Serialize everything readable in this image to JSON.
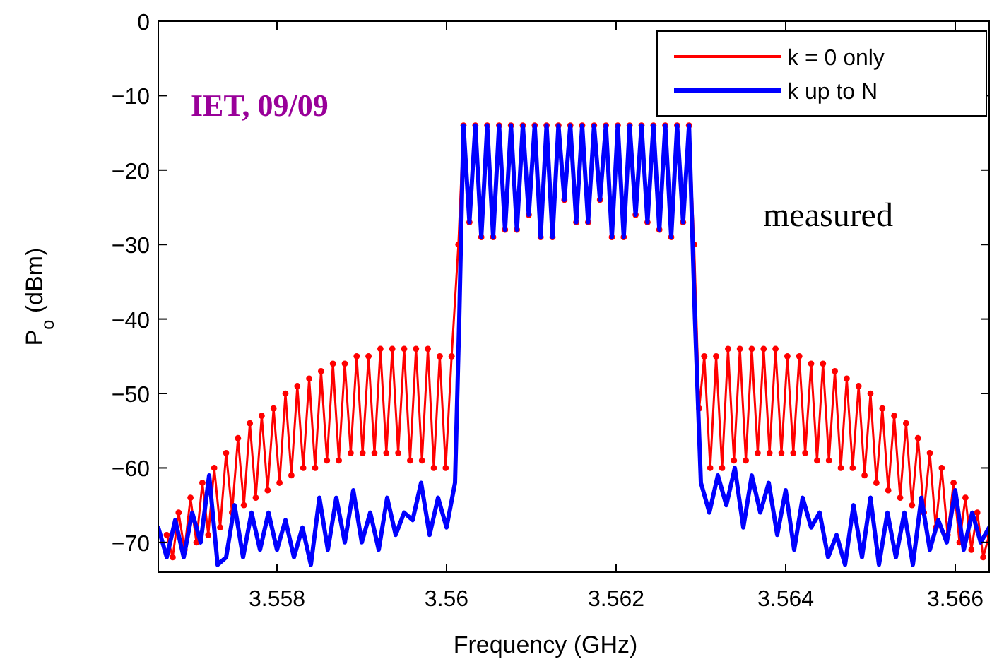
{
  "chart_data": {
    "type": "line",
    "xlabel": "Frequency  (GHz)",
    "ylabel": "P$_{o}$ (dBm)",
    "annotations": [
      "IET, 09/09",
      "measured"
    ],
    "xlim": [
      3.5566,
      3.5664
    ],
    "xticks": [
      3.558,
      3.56,
      3.562,
      3.564,
      3.566
    ],
    "ylim": [
      -74,
      0
    ],
    "yticks": [
      0,
      -10,
      -20,
      -30,
      -40,
      -50,
      -60,
      -70
    ],
    "legend": "top right",
    "line_style": "solid",
    "series": [
      {
        "name": "k = 0 only",
        "color": "#ff0000",
        "marker": "circle",
        "x": [
          3.5567,
          3.55677,
          3.55684,
          3.55691,
          3.55698,
          3.55705,
          3.55712,
          3.55719,
          3.55726,
          3.55733,
          3.5574,
          3.55747,
          3.55754,
          3.55761,
          3.55768,
          3.55775,
          3.55782,
          3.55789,
          3.55796,
          3.55803,
          3.5581,
          3.55817,
          3.55824,
          3.55831,
          3.55838,
          3.55845,
          3.55852,
          3.55859,
          3.55866,
          3.55873,
          3.5588,
          3.55887,
          3.55894,
          3.55901,
          3.55908,
          3.55915,
          3.55922,
          3.55929,
          3.55936,
          3.55943,
          3.5595,
          3.55957,
          3.55964,
          3.55971,
          3.55978,
          3.55985,
          3.55992,
          3.55999,
          3.56006,
          3.56014,
          3.5602,
          3.56027,
          3.56034,
          3.56041,
          3.56048,
          3.56055,
          3.56062,
          3.56069,
          3.56076,
          3.56083,
          3.5609,
          3.56097,
          3.56104,
          3.56111,
          3.56118,
          3.56125,
          3.56132,
          3.56139,
          3.56146,
          3.56153,
          3.5616,
          3.56167,
          3.56174,
          3.56181,
          3.56188,
          3.56195,
          3.56202,
          3.56209,
          3.56216,
          3.56223,
          3.5623,
          3.56237,
          3.56244,
          3.56251,
          3.56258,
          3.56265,
          3.56272,
          3.56279,
          3.56286,
          3.56292,
          3.56298,
          3.56304,
          3.56311,
          3.56318,
          3.56325,
          3.56332,
          3.56339,
          3.56346,
          3.56353,
          3.5636,
          3.56367,
          3.56374,
          3.56381,
          3.56388,
          3.56395,
          3.56402,
          3.56409,
          3.56416,
          3.56423,
          3.5643,
          3.56437,
          3.56444,
          3.56451,
          3.56458,
          3.56465,
          3.56472,
          3.56479,
          3.56486,
          3.56493,
          3.565,
          3.56507,
          3.56514,
          3.56521,
          3.56528,
          3.56535,
          3.56542,
          3.56549,
          3.56556,
          3.56563,
          3.5657,
          3.56577,
          3.56584,
          3.56591,
          3.56598,
          3.56605,
          3.56612,
          3.56619,
          3.56626,
          3.56633,
          3.5664
        ],
        "values": [
          -69,
          -72,
          -66,
          -71,
          -64,
          -70,
          -62,
          -69,
          -60,
          -68,
          -58,
          -66,
          -56,
          -65,
          -54,
          -64,
          -53,
          -63,
          -52,
          -62,
          -50,
          -61,
          -49,
          -60,
          -48,
          -60,
          -47,
          -59,
          -46,
          -59,
          -46,
          -58,
          -45,
          -58,
          -45,
          -58,
          -44,
          -58,
          -44,
          -58,
          -44,
          -59,
          -44,
          -59,
          -44,
          -60,
          -45,
          -60,
          -45,
          -30,
          -14,
          -27,
          -14,
          -29,
          -14,
          -29,
          -14,
          -28,
          -14,
          -28,
          -14,
          -26,
          -14,
          -29,
          -14,
          -29,
          -14,
          -24,
          -14,
          -27,
          -14,
          -27,
          -14,
          -24,
          -14,
          -29,
          -14,
          -29,
          -14,
          -26,
          -14,
          -27,
          -14,
          -28,
          -14,
          -29,
          -14,
          -27,
          -14,
          -30,
          -52,
          -45,
          -60,
          -45,
          -60,
          -44,
          -59,
          -44,
          -59,
          -44,
          -58,
          -44,
          -58,
          -44,
          -58,
          -45,
          -58,
          -45,
          -58,
          -46,
          -59,
          -46,
          -59,
          -47,
          -60,
          -48,
          -60,
          -49,
          -61,
          -50,
          -62,
          -52,
          -63,
          -53,
          -64,
          -54,
          -65,
          -56,
          -66,
          -58,
          -68,
          -60,
          -69,
          -62,
          -70,
          -64,
          -71,
          -66,
          -72,
          -69
        ]
      },
      {
        "name": "k up to N",
        "color": "#0000ff",
        "marker": "none",
        "x": [
          3.5566,
          3.5567,
          3.5568,
          3.5569,
          3.557,
          3.5571,
          3.5572,
          3.5573,
          3.5574,
          3.5575,
          3.5576,
          3.5577,
          3.5578,
          3.5579,
          3.558,
          3.5581,
          3.5582,
          3.5583,
          3.5584,
          3.5585,
          3.5586,
          3.5587,
          3.5588,
          3.5589,
          3.559,
          3.5591,
          3.5592,
          3.5593,
          3.5594,
          3.5595,
          3.5596,
          3.5597,
          3.5598,
          3.5599,
          3.56,
          3.5601,
          3.56015,
          3.5602,
          3.56027,
          3.56034,
          3.56041,
          3.56048,
          3.56055,
          3.56062,
          3.56069,
          3.56076,
          3.56083,
          3.5609,
          3.56097,
          3.56104,
          3.56111,
          3.56118,
          3.56125,
          3.56132,
          3.56139,
          3.56146,
          3.56153,
          3.5616,
          3.56167,
          3.56174,
          3.56181,
          3.56188,
          3.56195,
          3.56202,
          3.56209,
          3.56216,
          3.56223,
          3.5623,
          3.56237,
          3.56244,
          3.56251,
          3.56258,
          3.56265,
          3.56272,
          3.56279,
          3.56286,
          3.56293,
          3.563,
          3.5631,
          3.5632,
          3.5633,
          3.5634,
          3.5635,
          3.5636,
          3.5637,
          3.5638,
          3.5639,
          3.564,
          3.5641,
          3.5642,
          3.5643,
          3.5644,
          3.5645,
          3.5646,
          3.5647,
          3.5648,
          3.5649,
          3.565,
          3.5651,
          3.5652,
          3.5653,
          3.5654,
          3.5655,
          3.5656,
          3.5657,
          3.5658,
          3.5659,
          3.566,
          3.5661,
          3.5662,
          3.5663,
          3.5664
        ],
        "values": [
          -68,
          -72,
          -67,
          -72,
          -66,
          -70,
          -61,
          -73,
          -72,
          -65,
          -72,
          -66,
          -71,
          -66,
          -71,
          -67,
          -72,
          -68,
          -73,
          -64,
          -71,
          -64,
          -70,
          -63,
          -70,
          -66,
          -71,
          -64,
          -69,
          -66,
          -67,
          -62,
          -69,
          -64,
          -68,
          -62,
          -40,
          -14,
          -27,
          -14,
          -29,
          -14,
          -29,
          -14,
          -28,
          -14,
          -28,
          -14,
          -26,
          -14,
          -29,
          -14,
          -29,
          -14,
          -24,
          -14,
          -27,
          -14,
          -27,
          -14,
          -24,
          -14,
          -29,
          -14,
          -29,
          -14,
          -26,
          -14,
          -27,
          -14,
          -28,
          -14,
          -29,
          -14,
          -27,
          -14,
          -40,
          -62,
          -66,
          -61,
          -65,
          -60,
          -68,
          -61,
          -66,
          -62,
          -69,
          -63,
          -71,
          -64,
          -68,
          -66,
          -72,
          -69,
          -73,
          -65,
          -72,
          -64,
          -73,
          -66,
          -72,
          -66,
          -73,
          -64,
          -71,
          -67,
          -70,
          -63,
          -71,
          -66,
          -70,
          -68
        ]
      }
    ]
  }
}
